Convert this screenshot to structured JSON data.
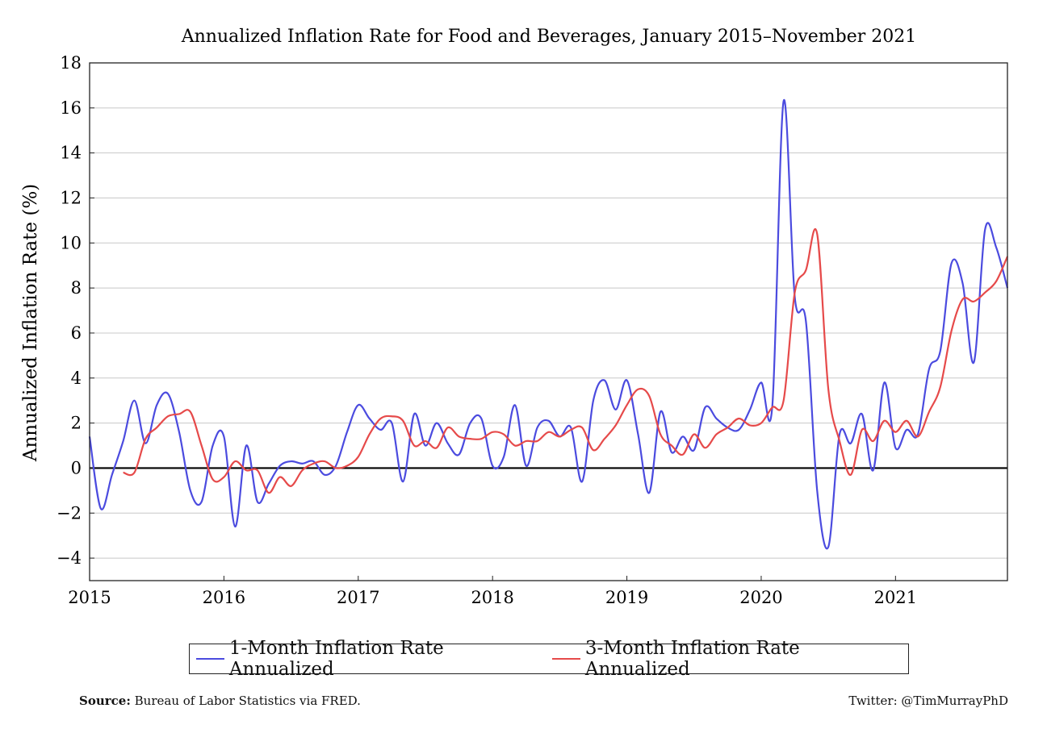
{
  "chart_data": {
    "type": "line",
    "title": "Annualized Inflation Rate for Food and Beverages, January 2015–November 2021",
    "xlabel": "",
    "ylabel": "Annualized Inflation Rate (%)",
    "ylim": [
      -5,
      18
    ],
    "yticks": [
      -4,
      -2,
      0,
      2,
      4,
      6,
      8,
      10,
      12,
      14,
      16,
      18
    ],
    "ytick_labels": [
      "−4",
      "−2",
      "0",
      "2",
      "4",
      "6",
      "8",
      "10",
      "12",
      "14",
      "16",
      "18"
    ],
    "xticks": [
      "2015",
      "2016",
      "2017",
      "2018",
      "2019",
      "2020",
      "2021"
    ],
    "x_start": "2015-01",
    "x_end": "2021-11",
    "grid": "horizontal",
    "legend_position": "bottom",
    "series": [
      {
        "name": "1-Month Inflation Rate Annualized",
        "color": "#4b4bdf",
        "values": [
          1.4,
          -1.8,
          -0.3,
          1.2,
          3.0,
          1.1,
          2.8,
          3.3,
          1.6,
          -1.0,
          -1.5,
          1.0,
          1.4,
          -2.6,
          1.0,
          -1.5,
          -0.7,
          0.1,
          0.3,
          0.2,
          0.3,
          -0.3,
          0.1,
          1.6,
          2.8,
          2.2,
          1.7,
          2.0,
          -0.6,
          2.4,
          1.0,
          2.0,
          1.1,
          0.6,
          2.0,
          2.2,
          0.1,
          0.5,
          2.8,
          0.1,
          1.8,
          2.1,
          1.4,
          1.8,
          -0.6,
          3.0,
          3.9,
          2.6,
          3.9,
          1.5,
          -1.1,
          2.5,
          0.7,
          1.4,
          0.8,
          2.7,
          2.2,
          1.8,
          1.7,
          2.6,
          3.8,
          2.8,
          16.3,
          7.6,
          6.5,
          -1.0,
          -3.5,
          1.5,
          1.1,
          2.4,
          -0.1,
          3.8,
          0.9,
          1.7,
          1.5,
          4.4,
          5.2,
          9.1,
          8.2,
          4.7,
          10.6,
          9.8,
          8.0
        ],
        "markers": false
      },
      {
        "name": "3-Month Inflation Rate Annualized",
        "color": "#e64a4a",
        "values": [
          -0.2,
          -0.2,
          1.3,
          1.8,
          2.3,
          2.4,
          2.5,
          1.0,
          -0.5,
          -0.4,
          0.3,
          -0.1,
          -0.1,
          -1.1,
          -0.4,
          -0.8,
          -0.1,
          0.2,
          0.3,
          0.0,
          0.1,
          0.5,
          1.5,
          2.2,
          2.3,
          2.1,
          1.0,
          1.2,
          0.9,
          1.8,
          1.4,
          1.3,
          1.3,
          1.6,
          1.5,
          1.0,
          1.2,
          1.2,
          1.6,
          1.4,
          1.7,
          1.8,
          0.8,
          1.3,
          1.9,
          2.8,
          3.5,
          3.2,
          1.5,
          1.0,
          0.6,
          1.5,
          0.9,
          1.5,
          1.8,
          2.2,
          1.9,
          2.0,
          2.7,
          3.0,
          7.8,
          8.8,
          10.4,
          3.5,
          1.2,
          -0.3,
          1.7,
          1.2,
          2.1,
          1.6,
          2.1,
          1.4,
          2.5,
          3.6,
          6.1,
          7.5,
          7.4,
          7.8,
          8.3,
          9.4
        ]
      }
    ],
    "x_offset_months": {
      "3-Month Inflation Rate Annualized": 3
    }
  },
  "footer": {
    "source_label": "Source:",
    "source_text": "Bureau of Labor Statistics via FRED.",
    "credit": "Twitter: @TimMurrayPhD"
  }
}
